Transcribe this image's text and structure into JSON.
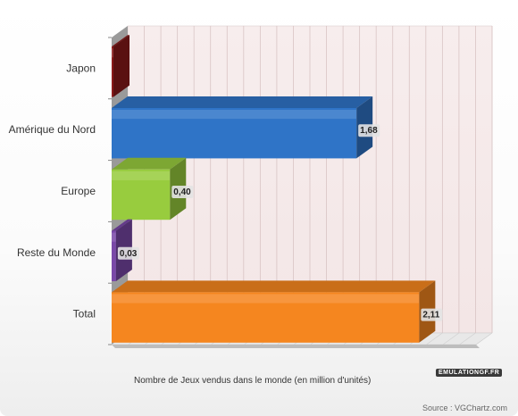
{
  "chart_data": {
    "type": "bar",
    "orientation": "horizontal",
    "categories": [
      "Japon",
      "Amérique du Nord",
      "Europe",
      "Reste du Monde",
      "Total"
    ],
    "values": [
      0.0,
      1.68,
      0.4,
      0.03,
      2.11
    ],
    "value_labels": [
      "",
      "1,68",
      "0,40",
      "0,03",
      "2,11"
    ],
    "colors": [
      "#8b1a1a",
      "#2f74c7",
      "#98cc3e",
      "#7a48a8",
      "#f5861f"
    ],
    "xlabel": "Nombre de Jeux vendus dans le monde (en million d'unités)",
    "xlim": [
      0,
      2.5
    ],
    "grid": true,
    "legend": "none"
  },
  "watermark": "EMULATIONGF.FR",
  "source": "Source : VGChartz.com"
}
